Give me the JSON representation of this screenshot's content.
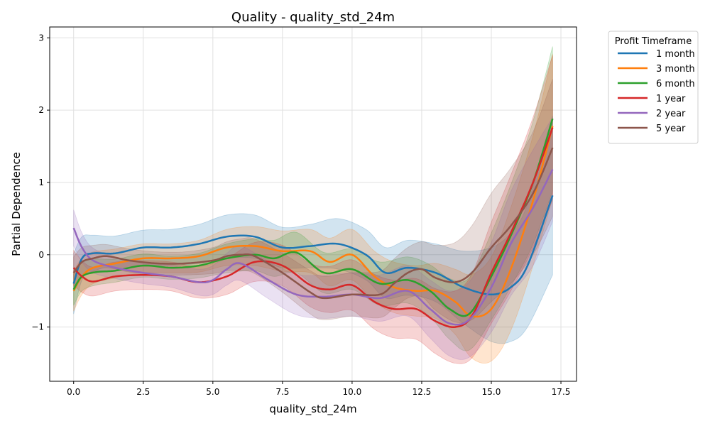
{
  "chart_data": {
    "type": "line",
    "title": "Quality - quality_std_24m",
    "xlabel": "quality_std_24m",
    "ylabel": "Partial Dependence",
    "xlim": [
      -0.86,
      18.06
    ],
    "ylim": [
      -1.75,
      3.15
    ],
    "xticks": [
      0,
      2.5,
      5,
      7.5,
      10,
      12.5,
      15,
      17.5
    ],
    "xtick_labels": [
      "0.0",
      "2.5",
      "5.0",
      "7.5",
      "10.0",
      "12.5",
      "15.0",
      "17.5"
    ],
    "yticks": [
      -1,
      0,
      1,
      2,
      3
    ],
    "ytick_labels": [
      "−1",
      "0",
      "1",
      "2",
      "3"
    ],
    "grid": true,
    "legend": {
      "title": "Profit Timeframe",
      "placement": "outside-top-right"
    },
    "series": [
      {
        "name": "1 month",
        "color": "#1f77b4",
        "x": [
          0,
          0.3,
          0.7,
          1.5,
          2.5,
          3.5,
          4.5,
          5.5,
          6.5,
          7.5,
          8.5,
          9.5,
          10.5,
          11.2,
          12.0,
          13.0,
          14.0,
          15.0,
          15.7,
          16.3,
          17.2
        ],
        "y": [
          -0.4,
          -0.05,
          0.02,
          0.02,
          0.1,
          0.1,
          0.15,
          0.25,
          0.25,
          0.1,
          0.12,
          0.15,
          0.0,
          -0.25,
          -0.18,
          -0.25,
          -0.45,
          -0.55,
          -0.45,
          -0.15,
          0.82
        ],
        "band": [
          0.42,
          0.3,
          0.25,
          0.24,
          0.24,
          0.25,
          0.27,
          0.3,
          0.3,
          0.28,
          0.3,
          0.35,
          0.35,
          0.35,
          0.38,
          0.4,
          0.5,
          0.65,
          0.75,
          0.85,
          1.1
        ]
      },
      {
        "name": "3 month",
        "color": "#ff7f0e",
        "x": [
          0,
          0.3,
          0.7,
          1.5,
          2.5,
          3.5,
          4.5,
          5.5,
          6.5,
          7.5,
          8.5,
          9.2,
          10.0,
          10.8,
          11.5,
          12.3,
          13.0,
          13.7,
          14.3,
          15.0,
          15.7,
          16.5,
          17.2
        ],
        "y": [
          -0.5,
          -0.3,
          -0.18,
          -0.12,
          -0.05,
          -0.05,
          -0.02,
          0.1,
          0.12,
          0.05,
          0.05,
          -0.1,
          0.0,
          -0.3,
          -0.45,
          -0.5,
          -0.5,
          -0.65,
          -0.85,
          -0.75,
          -0.2,
          0.75,
          1.78
        ],
        "band": [
          0.28,
          0.25,
          0.22,
          0.2,
          0.2,
          0.2,
          0.22,
          0.25,
          0.27,
          0.28,
          0.3,
          0.33,
          0.35,
          0.35,
          0.35,
          0.35,
          0.38,
          0.45,
          0.58,
          0.72,
          0.85,
          0.9,
          1.0
        ]
      },
      {
        "name": "6 month",
        "color": "#2ca02c",
        "x": [
          0,
          0.3,
          0.8,
          1.5,
          2.5,
          3.5,
          4.5,
          5.5,
          6.5,
          7.2,
          8.0,
          9.0,
          10.0,
          11.0,
          12.0,
          12.8,
          13.5,
          14.2,
          15.0,
          15.8,
          16.5,
          17.2
        ],
        "y": [
          -0.48,
          -0.3,
          -0.24,
          -0.22,
          -0.15,
          -0.18,
          -0.15,
          -0.05,
          0.0,
          -0.05,
          0.03,
          -0.25,
          -0.2,
          -0.4,
          -0.35,
          -0.5,
          -0.75,
          -0.82,
          -0.3,
          0.35,
          1.0,
          1.88
        ],
        "band": [
          0.22,
          0.2,
          0.18,
          0.16,
          0.16,
          0.16,
          0.17,
          0.2,
          0.22,
          0.25,
          0.28,
          0.28,
          0.28,
          0.3,
          0.32,
          0.36,
          0.42,
          0.5,
          0.6,
          0.72,
          0.85,
          1.0
        ]
      },
      {
        "name": "1 year",
        "color": "#d62728",
        "x": [
          0,
          0.3,
          0.7,
          1.5,
          2.5,
          3.5,
          4.5,
          5.5,
          6.5,
          7.5,
          8.5,
          9.2,
          10.0,
          10.8,
          11.5,
          12.3,
          13.0,
          13.7,
          14.3,
          15.0,
          15.7,
          16.5,
          17.2
        ],
        "y": [
          -0.18,
          -0.3,
          -0.37,
          -0.3,
          -0.28,
          -0.3,
          -0.38,
          -0.3,
          -0.1,
          -0.15,
          -0.42,
          -0.48,
          -0.42,
          -0.65,
          -0.75,
          -0.75,
          -0.92,
          -1.0,
          -0.85,
          -0.25,
          0.3,
          1.0,
          1.76
        ],
        "band": [
          0.24,
          0.22,
          0.2,
          0.2,
          0.2,
          0.2,
          0.22,
          0.25,
          0.27,
          0.28,
          0.3,
          0.32,
          0.35,
          0.38,
          0.4,
          0.42,
          0.45,
          0.5,
          0.58,
          0.7,
          0.8,
          0.9,
          1.0
        ]
      },
      {
        "name": "2 year",
        "color": "#9467bd",
        "x": [
          0,
          0.3,
          0.7,
          1.5,
          2.5,
          3.5,
          4.5,
          5.0,
          5.5,
          6.0,
          7.0,
          8.0,
          9.0,
          10.0,
          11.0,
          12.0,
          12.8,
          13.5,
          14.2,
          15.0,
          15.7,
          16.5,
          17.2
        ],
        "y": [
          0.37,
          0.1,
          -0.08,
          -0.18,
          -0.25,
          -0.3,
          -0.38,
          -0.35,
          -0.2,
          -0.12,
          -0.35,
          -0.55,
          -0.58,
          -0.55,
          -0.6,
          -0.5,
          -0.75,
          -0.95,
          -0.9,
          -0.45,
          0.15,
          0.65,
          1.18
        ],
        "band": [
          0.25,
          0.2,
          0.17,
          0.15,
          0.15,
          0.15,
          0.18,
          0.2,
          0.22,
          0.24,
          0.26,
          0.28,
          0.3,
          0.3,
          0.32,
          0.35,
          0.4,
          0.45,
          0.52,
          0.62,
          0.72,
          0.8,
          0.72
        ]
      },
      {
        "name": "5 year",
        "color": "#8c564b",
        "x": [
          0,
          0.3,
          0.7,
          1.2,
          2.0,
          3.0,
          4.0,
          5.0,
          5.5,
          6.0,
          6.5,
          7.5,
          8.5,
          9.0,
          10.0,
          11.0,
          11.5,
          12.0,
          12.5,
          13.0,
          13.7,
          14.3,
          15.0,
          15.7,
          16.5,
          17.2
        ],
        "y": [
          -0.25,
          -0.1,
          -0.05,
          -0.02,
          -0.08,
          -0.12,
          -0.12,
          -0.08,
          -0.02,
          0.0,
          -0.02,
          -0.25,
          -0.52,
          -0.6,
          -0.55,
          -0.55,
          -0.4,
          -0.25,
          -0.2,
          -0.32,
          -0.38,
          -0.25,
          0.1,
          0.4,
          0.85,
          1.48
        ],
        "band": [
          0.22,
          0.2,
          0.18,
          0.16,
          0.16,
          0.16,
          0.16,
          0.18,
          0.2,
          0.22,
          0.24,
          0.27,
          0.3,
          0.3,
          0.3,
          0.32,
          0.34,
          0.35,
          0.38,
          0.45,
          0.55,
          0.65,
          0.75,
          0.8,
          0.85,
          0.95
        ]
      }
    ]
  }
}
